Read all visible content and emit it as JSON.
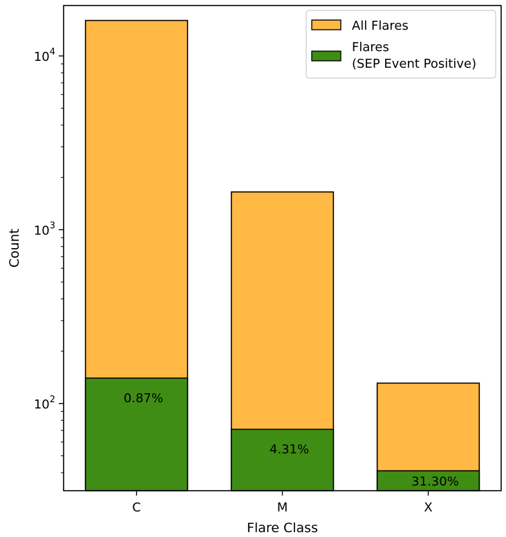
{
  "chart_data": {
    "type": "bar",
    "categories": [
      "C",
      "M",
      "X"
    ],
    "series": [
      {
        "name": "All Flares",
        "color": "#ffb944",
        "values": [
          16000,
          1650,
          131
        ]
      },
      {
        "name": "Flares\n(SEP Event Positive)",
        "color": "#3f8d14",
        "values": [
          140,
          71,
          41
        ]
      }
    ],
    "data_labels": [
      "0.87%",
      "4.31%",
      "31.30%"
    ],
    "xlabel": "Flare Class",
    "ylabel": "Count",
    "yscale": "log",
    "ylim": [
      31.5,
      19500
    ],
    "y_major_ticks": [
      {
        "value": 100,
        "base": "10",
        "exp": "2"
      },
      {
        "value": 1000,
        "base": "10",
        "exp": "3"
      },
      {
        "value": 10000,
        "base": "10",
        "exp": "4"
      }
    ],
    "grid": false,
    "legend_position": "top-right"
  }
}
